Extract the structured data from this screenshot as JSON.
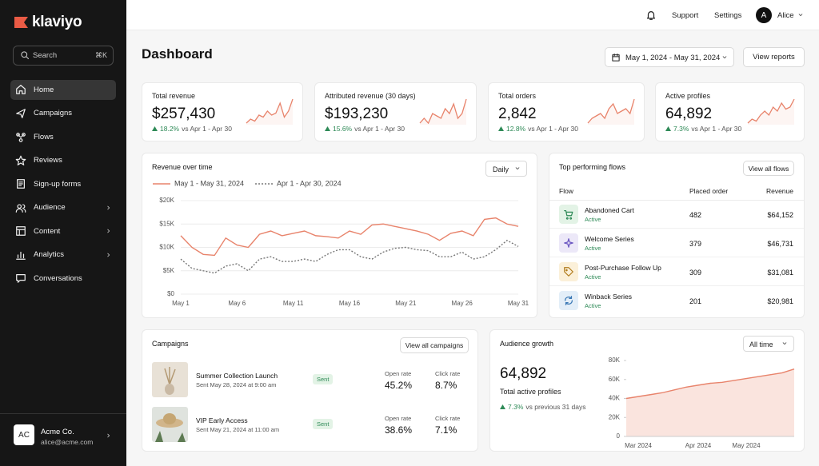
{
  "sidebar": {
    "logo": "klaviyo",
    "search": "Search",
    "shortcut": "⌘K",
    "nav": [
      {
        "label": "Home",
        "active": true
      },
      {
        "label": "Campaigns"
      },
      {
        "label": "Flows"
      },
      {
        "label": "Reviews"
      },
      {
        "label": "Sign-up forms"
      },
      {
        "label": "Audience",
        "has_submenu": true
      },
      {
        "label": "Content",
        "has_submenu": true
      },
      {
        "label": "Analytics",
        "has_submenu": true
      },
      {
        "label": "Conversations"
      }
    ],
    "account": {
      "initials": "AC",
      "name": "Acme Co.",
      "email": "alice@acme.com"
    }
  },
  "topbar": {
    "support": "Support",
    "settings": "Settings",
    "user_initial": "A",
    "user_name": "Alice"
  },
  "header": {
    "title": "Dashboard",
    "date_range": "May 1, 2024 - May 31, 2024",
    "button": "View reports"
  },
  "kpis": [
    {
      "label": "Total revenue",
      "value": "$257,430",
      "change": "18.2%",
      "compare": "vs Apr 1 - Apr 30",
      "color": "#e8836b",
      "sparkline": [
        4,
        5,
        4.5,
        6,
        5.5,
        7,
        6,
        6.5,
        9,
        5.5,
        7,
        10
      ]
    },
    {
      "label": "Attributed revenue (30 days)",
      "value": "$193,230",
      "change": "15.6%",
      "compare": "vs Apr 1 - Apr 30",
      "color": "#e8836b",
      "sparkline": [
        5,
        6,
        5,
        7,
        6.5,
        6,
        8,
        7,
        9,
        6,
        7,
        10
      ]
    },
    {
      "label": "Total orders",
      "value": "2,842",
      "change": "12.8%",
      "compare": "vs Apr 1 - Apr 30",
      "color": "#e8836b",
      "sparkline": [
        4,
        5,
        5.5,
        6,
        5,
        7,
        8,
        6,
        6.5,
        7,
        6,
        9
      ]
    },
    {
      "label": "Active profiles",
      "value": "64,892",
      "change": "7.3%",
      "compare": "vs Apr 1 - Apr 30",
      "color": "#e8836b",
      "sparkline": [
        3,
        4,
        3.5,
        5,
        6,
        5,
        7,
        6,
        8,
        6.5,
        7,
        9
      ]
    }
  ],
  "revenue_chart": {
    "type": "line",
    "title": "Revenue over time",
    "dropdown": "Daily",
    "categories": [
      "May 1",
      null,
      null,
      null,
      null,
      "May 6",
      null,
      null,
      null,
      null,
      "May 11",
      null,
      null,
      null,
      null,
      "May 16",
      null,
      null,
      null,
      null,
      "May 21",
      null,
      null,
      null,
      null,
      "May 26",
      null,
      null,
      null,
      null,
      "May 31"
    ],
    "series": [
      {
        "name": "May 1 - May 31, 2024",
        "color": "#e8836b",
        "line_style": "solid",
        "values": [
          12500,
          10000,
          8500,
          8300,
          12000,
          10500,
          10000,
          12800,
          13500,
          12500,
          13000,
          13500,
          12500,
          12300,
          12000,
          13500,
          12800,
          14800,
          15000,
          14500,
          14000,
          13500,
          12800,
          11500,
          13000,
          13500,
          12500,
          16000,
          16300,
          15000,
          14500
        ]
      },
      {
        "name": "Apr 1 - Apr 30, 2024",
        "color": "#777777",
        "line_style": "dashed",
        "values": [
          7500,
          5500,
          5000,
          4500,
          6000,
          6500,
          5000,
          7500,
          8000,
          7000,
          7000,
          7500,
          7000,
          8500,
          9500,
          9500,
          8000,
          7500,
          9000,
          9800,
          10000,
          9500,
          9300,
          8000,
          8000,
          9000,
          7500,
          8000,
          9500,
          11500,
          10200
        ]
      }
    ],
    "ylim": [
      0,
      20000
    ],
    "yticks": [
      {
        "value": 0,
        "label": "$0"
      },
      {
        "value": 5000,
        "label": "$5K"
      },
      {
        "value": 10000,
        "label": "$10K"
      },
      {
        "value": 15000,
        "label": "$15K"
      },
      {
        "value": 20000,
        "label": "$20K"
      }
    ],
    "grid": true
  },
  "flows": {
    "title": "Top performing flows",
    "button": "View all flows",
    "columns": [
      "Flow",
      "Placed order",
      "Revenue"
    ],
    "rows": [
      {
        "name": "Abandoned Cart",
        "status": "Active",
        "placed_order": "482",
        "revenue": "$64,152"
      },
      {
        "name": "Welcome Series",
        "status": "Active",
        "placed_order": "379",
        "revenue": "$46,731"
      },
      {
        "name": "Post-Purchase Follow Up",
        "status": "Active",
        "placed_order": "309",
        "revenue": "$31,081"
      },
      {
        "name": "Winback Series",
        "status": "Active",
        "placed_order": "201",
        "revenue": "$20,981"
      }
    ]
  },
  "campaigns": {
    "title": "Campaigns",
    "button": "View all campaigns",
    "rows": [
      {
        "name": "Summer Collection Launch",
        "sent": "Sent May 28, 2024 at 9:00 am",
        "status": "Sent",
        "open_label": "Open rate",
        "open_rate": "45.2%",
        "click_label": "Click rate",
        "click_rate": "8.7%"
      },
      {
        "name": "VIP Early Access",
        "sent": "Sent May 21, 2024 at 11:00 am",
        "status": "Sent",
        "open_label": "Open rate",
        "open_rate": "38.6%",
        "click_label": "Click rate",
        "click_rate": "7.1%"
      }
    ]
  },
  "audience": {
    "title": "Audience growth",
    "dropdown": "All time",
    "total": "64,892",
    "total_label": "Total active profiles",
    "change": "7.3%",
    "compare": "vs previous 31 days",
    "chart": {
      "type": "area",
      "categories": [
        null,
        "Mar 2024",
        null,
        null,
        null,
        null,
        "Apr 2024",
        null,
        null,
        null,
        "May 2024",
        null,
        null,
        null,
        null
      ],
      "series": [
        {
          "color": "#e8836b",
          "values": [
            40000,
            42000,
            44000,
            46000,
            49000,
            52000,
            54000,
            56000,
            57000,
            59000,
            61000,
            63000,
            65000,
            67000,
            71000
          ]
        }
      ],
      "ylim": [
        0,
        80000
      ],
      "yticks": [
        0,
        {
          "value": 20000,
          "label": "20K"
        },
        {
          "value": 40000,
          "label": "40K"
        },
        {
          "value": 60000,
          "label": "60K"
        },
        {
          "value": 80000,
          "label": "80K"
        }
      ],
      "grid": false
    }
  }
}
